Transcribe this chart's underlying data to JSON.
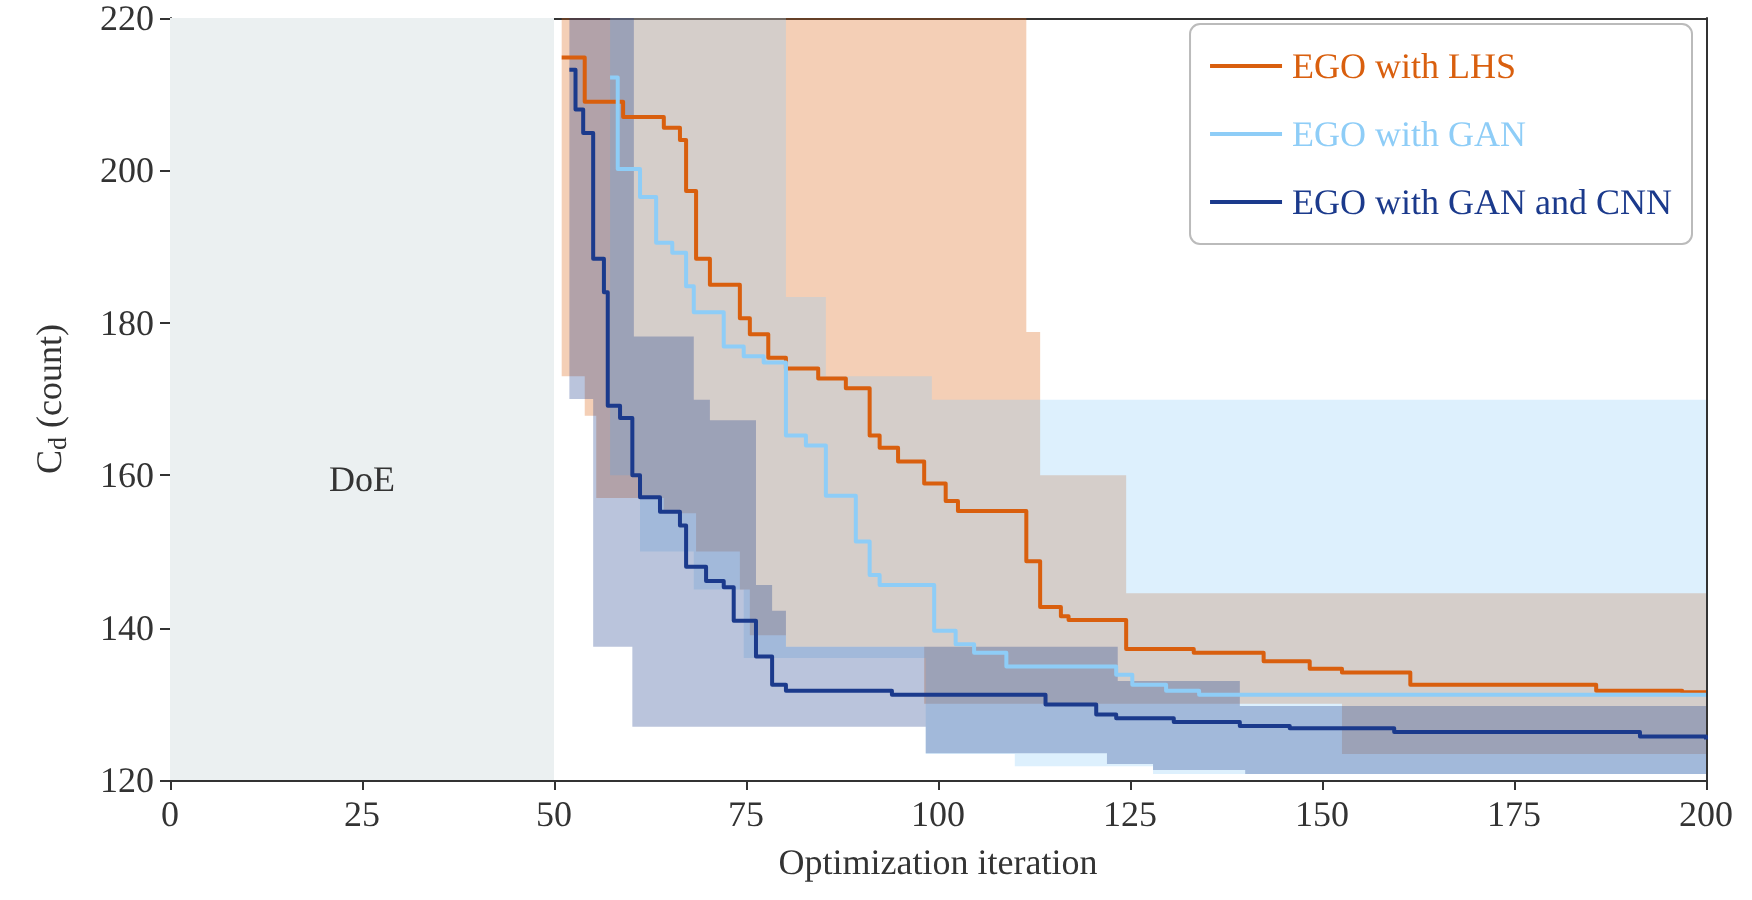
{
  "chart_data": {
    "type": "step",
    "xlabel": "Optimization iteration",
    "ylabel": "C$_{d}$ (count)",
    "xlim": [
      0,
      200
    ],
    "xticks": [
      0,
      25,
      50,
      75,
      100,
      125,
      150,
      175,
      200
    ],
    "ylim": [
      120,
      220
    ],
    "yticks": [
      120,
      140,
      160,
      180,
      200,
      220
    ],
    "grid": false,
    "legend": "top right",
    "line_style": "solid",
    "marker": "none",
    "bands": [
      {
        "axis": "x",
        "from": 0,
        "to": 50,
        "label": "DoE",
        "color": "#ebf0f1"
      }
    ],
    "series": [
      {
        "name": "EGO with LHS",
        "color": "#d95f0e",
        "x": [
          51,
          54,
          55.5,
          59,
          64.3,
          66.4,
          67.2,
          68.5,
          70.3,
          74.2,
          75.5,
          77.9,
          80.2,
          84.4,
          88,
          91.1,
          92.4,
          94.8,
          98.2,
          101,
          102.6,
          111.5,
          113.3,
          116,
          117,
          124.5,
          133.3,
          142.4,
          148.4,
          152.6,
          161.5,
          185.7,
          196.9,
          200
        ],
        "values": [
          214.8,
          209,
          209,
          207,
          205.6,
          204,
          197.3,
          188.4,
          185,
          180.6,
          178.5,
          175.4,
          174,
          172.7,
          171.4,
          165.2,
          163.6,
          161.8,
          158.9,
          156.6,
          155.3,
          148.7,
          142.7,
          141.5,
          141,
          137.2,
          136.7,
          135.6,
          134.6,
          134.1,
          132.5,
          131.7,
          131.5,
          131.5
        ],
        "lower": [
          173,
          167.8,
          157,
          157,
          155,
          155,
          155,
          150,
          150,
          145,
          139,
          139,
          137.5,
          137.5,
          137.5,
          137.5,
          137.5,
          137.5,
          130,
          130,
          130,
          130,
          130,
          130,
          130,
          130,
          130,
          130,
          130,
          123.4,
          123.4,
          123.4,
          123.4,
          123.4
        ],
        "upper": [
          220,
          220,
          220,
          220,
          220,
          220,
          220,
          220,
          220,
          220,
          220,
          220,
          220,
          220,
          220,
          220,
          220,
          220,
          220,
          220,
          220,
          178.8,
          160,
          160,
          160,
          144.5,
          144.5,
          144.5,
          144.5,
          144.5,
          144.5,
          144.5,
          144.5,
          144.5
        ]
      },
      {
        "name": "EGO with GAN",
        "color": "#8ecdf7",
        "x": [
          57.3,
          58.3,
          61.2,
          63.3,
          65.4,
          67.2,
          68.2,
          72.1,
          74.7,
          77.3,
          80.2,
          82.8,
          85.4,
          89.3,
          91.1,
          92.4,
          98.4,
          99.2,
          99.5,
          102.3,
          104.7,
          108.9,
          110,
          123.2,
          125.3,
          128,
          129.7,
          134,
          200
        ],
        "values": [
          212.2,
          200.2,
          196.5,
          190.5,
          189.2,
          184.8,
          181.4,
          176.9,
          175.6,
          174.8,
          165.2,
          163.9,
          157.3,
          151.3,
          146.9,
          145.6,
          145.6,
          145.6,
          139.6,
          137.8,
          136.7,
          134.9,
          134.9,
          133.8,
          132.5,
          132.5,
          131.7,
          131.2,
          131.2
        ],
        "lower": [
          160,
          160,
          150,
          150,
          150,
          150,
          145,
          145,
          136,
          136,
          136,
          136,
          136,
          136,
          136,
          136,
          123.4,
          123.4,
          123.4,
          123.4,
          123.4,
          123.4,
          121.8,
          121.8,
          121.8,
          120.8,
          120.8,
          120.8,
          120.8
        ],
        "upper": [
          220,
          220,
          220,
          220,
          220,
          220,
          220,
          220,
          220,
          220,
          183.4,
          183.4,
          173,
          173,
          173,
          173,
          173,
          169.9,
          169.9,
          169.9,
          169.9,
          169.9,
          169.9,
          169.9,
          169.9,
          169.9,
          169.9,
          169.9,
          169.9
        ]
      },
      {
        "name": "EGO with GAN and CNN",
        "color": "#1b3a8c",
        "x": [
          52,
          52.8,
          53.8,
          55.1,
          56.5,
          57,
          58.6,
          60.2,
          60.4,
          61.2,
          63.8,
          66.4,
          67.2,
          68.2,
          69.8,
          70.3,
          72.1,
          73.4,
          76.3,
          78.4,
          80.2,
          94,
          98.4,
          114,
          120.6,
          122,
          123.2,
          123.4,
          128,
          130.7,
          139.3,
          140,
          145.8,
          159.4,
          191.4,
          200
        ],
        "values": [
          213.2,
          208,
          204.9,
          188.4,
          184,
          169.1,
          167.5,
          160,
          160,
          157.1,
          155.2,
          153.4,
          148,
          148,
          146.1,
          146.1,
          145.3,
          140.9,
          136.2,
          132.5,
          131.7,
          131.2,
          131.2,
          129.9,
          128.6,
          128.6,
          128.1,
          128.1,
          128.1,
          127.6,
          127.1,
          127.1,
          126.8,
          126.3,
          125.7,
          125.3
        ],
        "lower": [
          170,
          170,
          170,
          137.5,
          137.5,
          137.5,
          137.5,
          127,
          127,
          127,
          127,
          127,
          127,
          127,
          127,
          127,
          127,
          127,
          127,
          127,
          127,
          127,
          123.5,
          123.5,
          123.5,
          122.1,
          122.1,
          122.1,
          121.3,
          121.3,
          121.3,
          120.8,
          120.8,
          120.8,
          120.8,
          120.8
        ],
        "upper": [
          220,
          220,
          220,
          220,
          220,
          220,
          220,
          220,
          178.2,
          178.2,
          178.2,
          178.2,
          178.2,
          169.9,
          169.9,
          167.2,
          167.2,
          167.2,
          145.6,
          142.2,
          137.5,
          137.5,
          137.5,
          137.5,
          137.5,
          137.5,
          137.5,
          133,
          133,
          133,
          129.7,
          129.7,
          129.7,
          129.7,
          129.7,
          129.7
        ]
      }
    ]
  }
}
